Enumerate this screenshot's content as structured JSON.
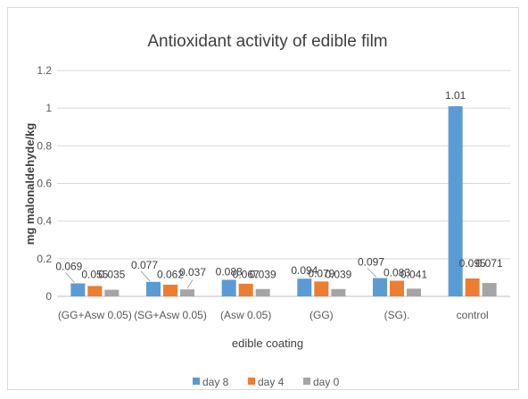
{
  "chart_data": {
    "type": "bar",
    "title": "Antioxidant activity of edible film",
    "xlabel": "edible coating",
    "ylabel": "mg malonaldehyde/kg",
    "ylim": [
      0,
      1.2
    ],
    "yticks": [
      "0",
      "0.2",
      "0.4",
      "0.6",
      "0.8",
      "1",
      "1.2"
    ],
    "grid": true,
    "legend": "bottom",
    "categories": [
      "(GG+Asw 0.05)",
      "(SG+Asw 0.05)",
      "(Asw 0.05)",
      "(GG)",
      "(SG).",
      "control"
    ],
    "series": [
      {
        "name": "day 8",
        "color": "#5b9bd5",
        "values": [
          0.069,
          0.077,
          0.088,
          0.094,
          0.097,
          1.01
        ],
        "labels": [
          "0.069",
          "0.077",
          "0.088",
          "0.094",
          "0.097",
          "1.01"
        ]
      },
      {
        "name": "day 4",
        "color": "#ed7d31",
        "values": [
          0.055,
          0.062,
          0.067,
          0.079,
          0.083,
          0.095
        ],
        "labels": [
          "0.055",
          "0.062",
          "0.067",
          "0.079",
          "0.083",
          "0.095"
        ]
      },
      {
        "name": "day 0",
        "color": "#a5a5a5",
        "values": [
          0.035,
          0.037,
          0.039,
          0.039,
          0.041,
          0.071
        ],
        "labels": [
          "0.035",
          "0.037",
          "0.039",
          "0.039",
          "0.041",
          "0.071"
        ]
      }
    ]
  }
}
